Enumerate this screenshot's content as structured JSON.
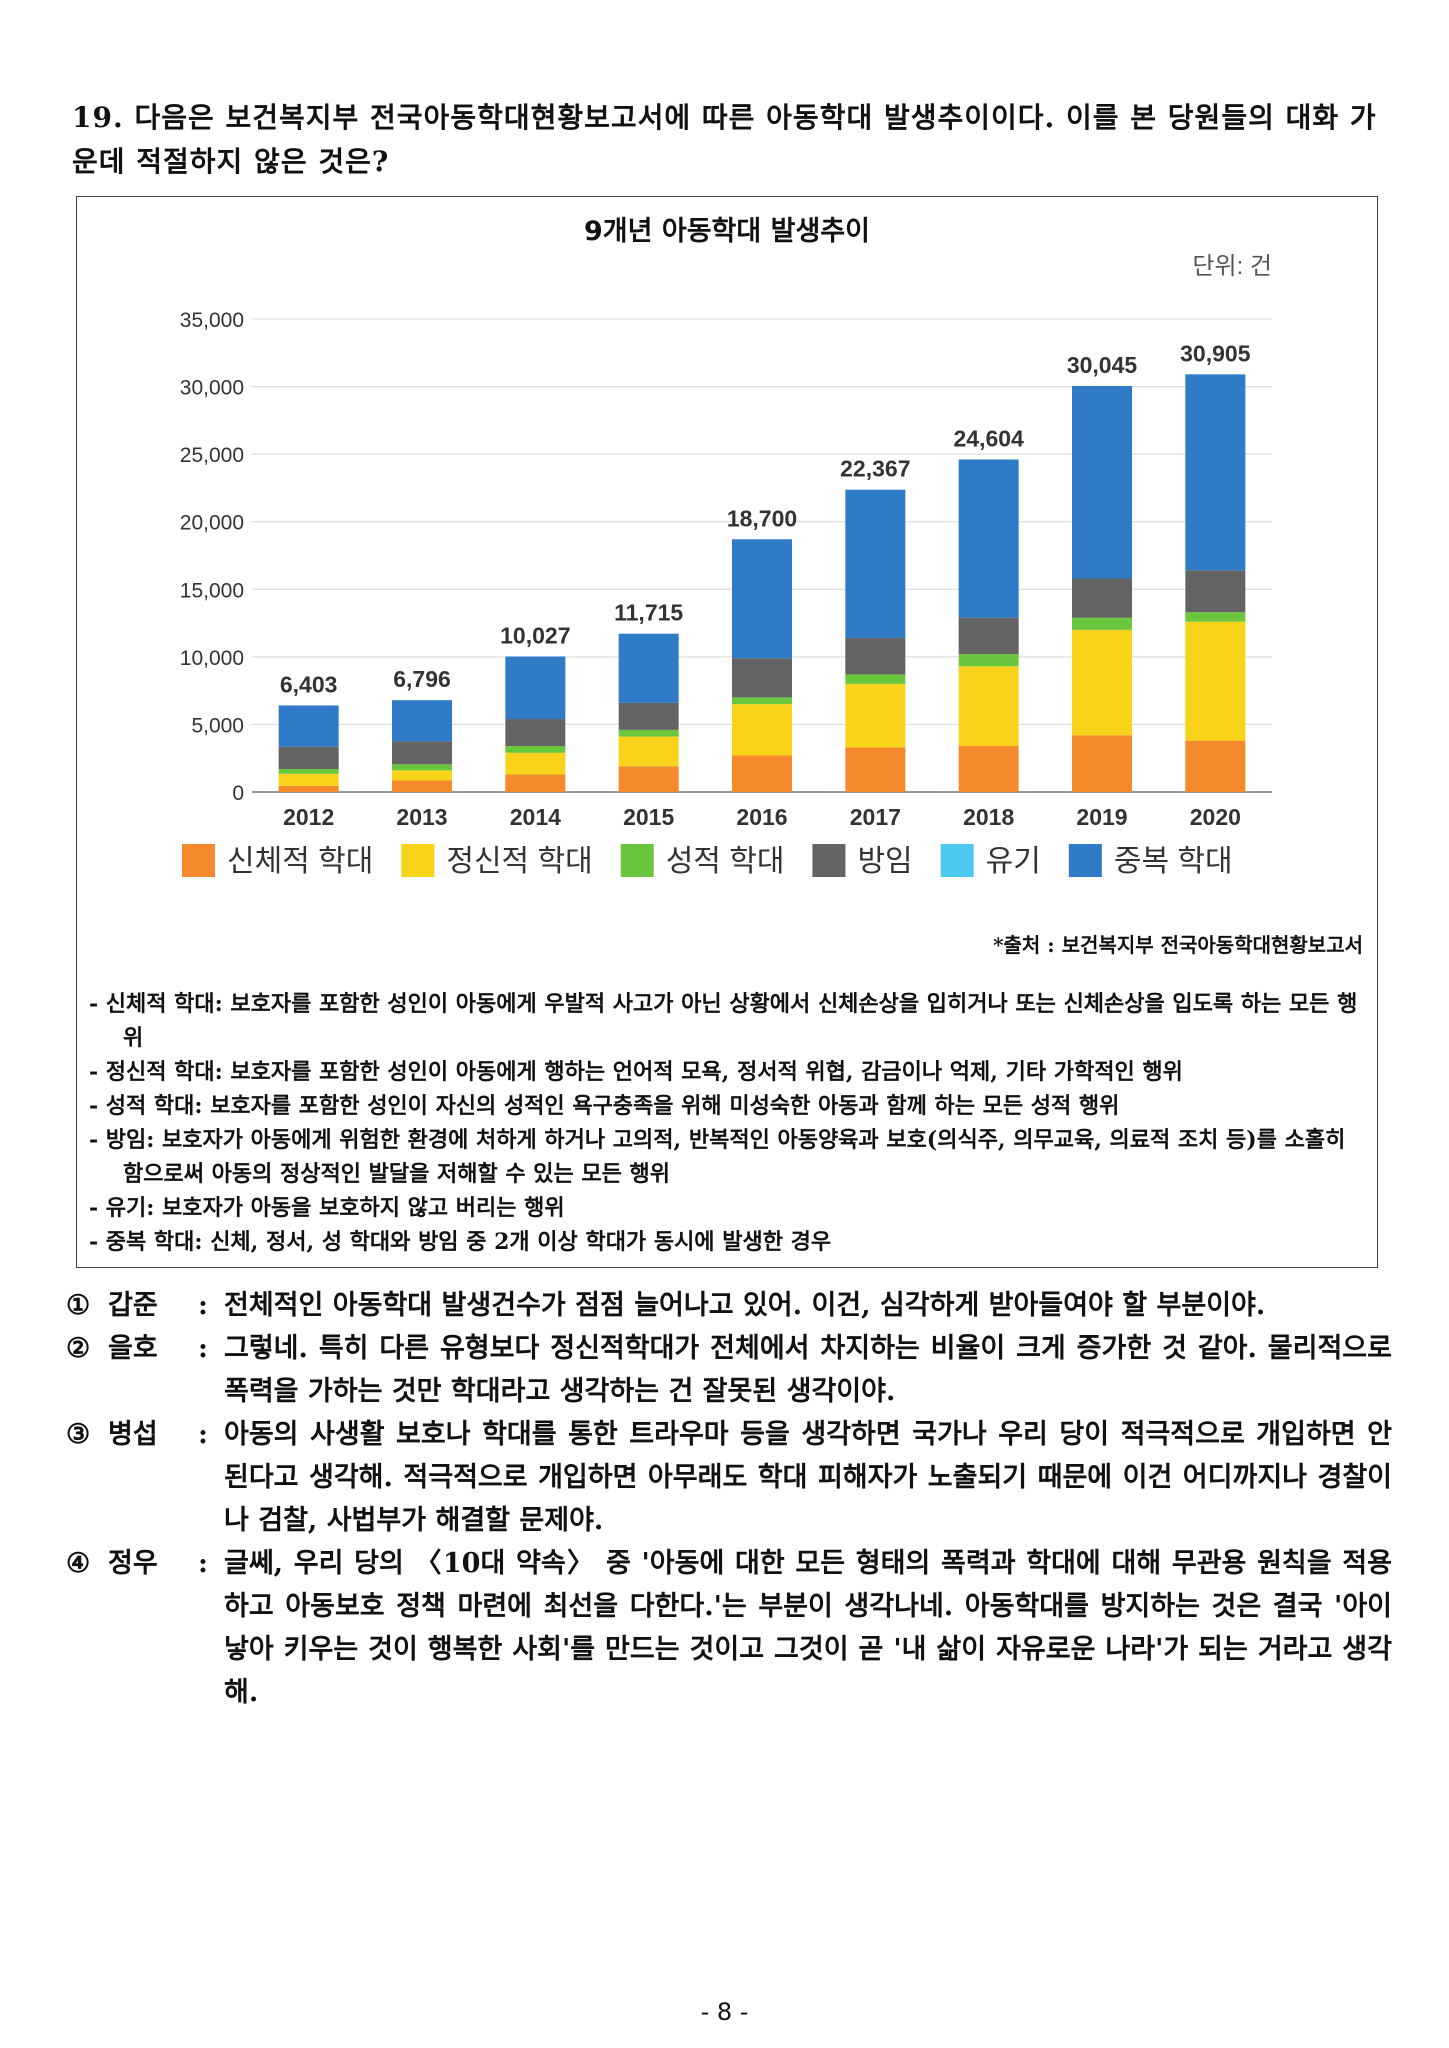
{
  "question": {
    "text": "19. 다음은 보건복지부 전국아동학대현황보고서에 따른 아동학대 발생추이이다. 이를 본 당원들의 대화 가운데 적절하지 않은 것은?"
  },
  "chart_data": {
    "type": "bar",
    "stacked": true,
    "title": "9개년 아동학대 발생추이",
    "unit": "단위: 건",
    "categories": [
      "2012",
      "2013",
      "2014",
      "2015",
      "2016",
      "2017",
      "2018",
      "2019",
      "2020"
    ],
    "totals": [
      6403,
      6796,
      10027,
      11715,
      18700,
      22367,
      24604,
      30045,
      30905
    ],
    "total_labels": [
      "6,403",
      "6,796",
      "10,027",
      "11,715",
      "18,700",
      "22,367",
      "24,604",
      "30,045",
      "30,905"
    ],
    "ylim": [
      0,
      35000
    ],
    "yticks": [
      0,
      5000,
      10000,
      15000,
      20000,
      25000,
      30000,
      35000
    ],
    "ytick_labels": [
      "0",
      "5,000",
      "10,000",
      "15,000",
      "20,000",
      "25,000",
      "30,000",
      "35,000"
    ],
    "series": [
      {
        "name": "신체적 학대",
        "color": "#f58a2c",
        "values": [
          450,
          850,
          1300,
          1900,
          2700,
          3300,
          3400,
          4200,
          3800
        ]
      },
      {
        "name": "정신적 학대",
        "color": "#f9d21a",
        "values": [
          900,
          750,
          1600,
          2200,
          3800,
          4700,
          5900,
          7800,
          8800
        ]
      },
      {
        "name": "성적 학대",
        "color": "#6ac73d",
        "values": [
          350,
          450,
          500,
          500,
          500,
          700,
          900,
          900,
          700
        ]
      },
      {
        "name": "방임",
        "color": "#636363",
        "values": [
          1650,
          1700,
          2000,
          2000,
          2900,
          2700,
          2700,
          2900,
          3100
        ]
      },
      {
        "name": "유기",
        "color": "#4cc9f0",
        "values": [
          0,
          0,
          0,
          0,
          0,
          0,
          0,
          0,
          0
        ]
      },
      {
        "name": "중복 학대",
        "color": "#2f7bc8",
        "values": [
          3053,
          3046,
          4627,
          5115,
          8800,
          10967,
          11704,
          14245,
          14505
        ]
      }
    ],
    "source": "*출처 : 보건복지부 전국아동학대현황보고서"
  },
  "definitions": [
    "- 신체적 학대: 보호자를 포함한 성인이 아동에게 우발적 사고가 아닌 상황에서 신체손상을 입히거나 또는 신체손상을 입도록 하는 모든 행위",
    "- 정신적 학대: 보호자를 포함한 성인이 아동에게 행하는 언어적 모욕, 정서적 위협, 감금이나 억제, 기타 가학적인 행위",
    "- 성적 학대: 보호자를 포함한 성인이 자신의 성적인 욕구충족을 위해 미성숙한 아동과 함께 하는 모든 성적 행위",
    "- 방임: 보호자가 아동에게 위험한 환경에 처하게 하거나 고의적, 반복적인 아동양육과 보호(의식주, 의무교육, 의료적 조치 등)를 소홀히 함으로써 아동의 정상적인 발달을 저해할 수 있는 모든 행위",
    "- 유기: 보호자가 아동을 보호하지 않고 버리는 행위",
    "- 중복 학대: 신체, 정서, 성 학대와 방임 중 2개 이상 학대가 동시에 발생한 경우"
  ],
  "answers": [
    {
      "num": "①",
      "who": "갑준",
      "text": "전체적인 아동학대 발생건수가 점점 늘어나고 있어. 이건, 심각하게 받아들여야 할 부분이야."
    },
    {
      "num": "②",
      "who": "을호",
      "text": "그렇네. 특히 다른 유형보다 정신적학대가 전체에서 차지하는 비율이 크게 증가한 것 같아. 물리적으로 폭력을 가하는 것만 학대라고 생각하는 건 잘못된 생각이야."
    },
    {
      "num": "③",
      "who": "병섭",
      "text": "아동의 사생활 보호나 학대를 통한 트라우마 등을 생각하면 국가나 우리 당이 적극적으로 개입하면 안 된다고 생각해. 적극적으로 개입하면 아무래도 학대 피해자가 노출되기 때문에 이건 어디까지나 경찰이나 검찰, 사법부가 해결할 문제야."
    },
    {
      "num": "④",
      "who": "정우",
      "text": "글쎄, 우리 당의 〈10대 약속〉 중 '아동에 대한 모든 형태의 폭력과 학대에 대해 무관용 원칙을 적용하고 아동보호 정책 마련에 최선을 다한다.'는 부분이 생각나네. 아동학대를 방지하는 것은 결국 '아이 낳아 키우는 것이 행복한 사회'를 만드는 것이고 그것이 곧 '내 삶이 자유로운 나라'가 되는 거라고 생각해."
    }
  ],
  "answer_colon": ":",
  "page_number": "- 8 -"
}
